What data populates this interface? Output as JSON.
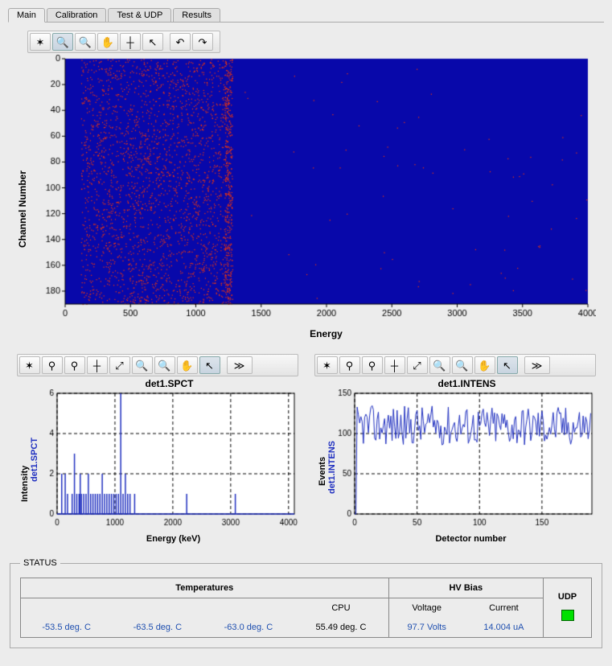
{
  "tabs": [
    "Main",
    "Calibration",
    "Test & UDP",
    "Results"
  ],
  "active_tab": 0,
  "main_chart": {
    "type": "heatmap",
    "xlabel": "Energy",
    "ylabel": "Channel Number",
    "xlim": [
      0,
      4000
    ],
    "ylim": [
      190,
      0
    ],
    "xtick_step": 500,
    "yticks": [
      0,
      20,
      40,
      60,
      80,
      100,
      120,
      140,
      160,
      180
    ],
    "background_color": "#0808aa",
    "scatter_color": "#ff3800",
    "dense_x_range": [
      120,
      1250
    ],
    "edge_x": 1250,
    "n_points": 3000,
    "axis_fontsize": 12
  },
  "spct_chart": {
    "type": "bar-spectrum",
    "title": "det1.SPCT",
    "xlabel": "Energy (keV)",
    "ylabel": "Intensity",
    "ylabel2": "det1.SPCT",
    "ylabel2_color": "#2030c0",
    "xlim": [
      0,
      4100
    ],
    "ylim": [
      0,
      6
    ],
    "xtick_step": 1000,
    "ytick_step": 2,
    "line_color": "#2030c0",
    "grid_color": "#000000",
    "grid_dash": true,
    "bars": [
      [
        80,
        2
      ],
      [
        140,
        2
      ],
      [
        180,
        1
      ],
      [
        260,
        1
      ],
      [
        300,
        3
      ],
      [
        340,
        1
      ],
      [
        380,
        1
      ],
      [
        400,
        2
      ],
      [
        420,
        1
      ],
      [
        460,
        1
      ],
      [
        500,
        1
      ],
      [
        540,
        2
      ],
      [
        580,
        1
      ],
      [
        620,
        1
      ],
      [
        660,
        1
      ],
      [
        700,
        1
      ],
      [
        740,
        1
      ],
      [
        780,
        2
      ],
      [
        820,
        1
      ],
      [
        860,
        1
      ],
      [
        900,
        1
      ],
      [
        940,
        1
      ],
      [
        980,
        1
      ],
      [
        1020,
        1
      ],
      [
        1060,
        1
      ],
      [
        1100,
        6
      ],
      [
        1140,
        1
      ],
      [
        1180,
        2
      ],
      [
        1220,
        1
      ],
      [
        1260,
        1
      ],
      [
        1340,
        1
      ],
      [
        2240,
        1
      ],
      [
        3080,
        1
      ]
    ]
  },
  "intens_chart": {
    "type": "line",
    "title": "det1.INTENS",
    "xlabel": "Detector number",
    "ylabel": "Events",
    "ylabel2": "det1.INTENS",
    "ylabel2_color": "#2030c0",
    "xlim": [
      0,
      190
    ],
    "ylim": [
      0,
      150
    ],
    "xtick_step": 50,
    "ytick_step": 50,
    "line_color": "#2030c0",
    "grid_color": "#000000",
    "grid_dash": true,
    "baseline": 110,
    "noise_amp": 25,
    "n_points": 190
  },
  "toolbars": {
    "main": [
      "settings",
      "zoom-box",
      "zoom-out",
      "pan",
      "crosshair",
      "pointer",
      "",
      "undo",
      "redo"
    ],
    "sub": [
      "settings",
      "pin",
      "pin2",
      "crosshair",
      "axes-auto",
      "zoom-box",
      "zoom-out",
      "pan",
      "pointer",
      "",
      "more"
    ]
  },
  "status": {
    "legend": "STATUS",
    "temperatures_label": "Temperatures",
    "cpu_label": "CPU",
    "hv_label": "HV Bias",
    "voltage_label": "Voltage",
    "current_label": "Current",
    "udp_label": "UDP",
    "temps": [
      "-53.5 deg. C",
      "-63.5 deg. C",
      "-63.0 deg. C"
    ],
    "cpu_temp": "55.49 deg. C",
    "voltage": "97.7 Volts",
    "current": "14.004 uA",
    "udp_on": true
  }
}
